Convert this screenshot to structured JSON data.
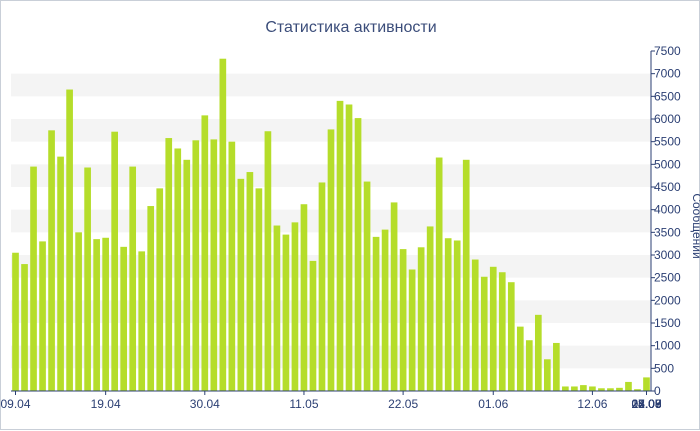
{
  "chart_data": {
    "type": "bar",
    "title": "Статистика активности",
    "xlabel": "",
    "ylabel": "Сообщений",
    "ylim": [
      0,
      7500
    ],
    "y_ticks": [
      0,
      500,
      1000,
      1500,
      2000,
      2500,
      3000,
      3500,
      4000,
      4500,
      5000,
      5500,
      6000,
      6500,
      7000,
      7500
    ],
    "y_axis_side": "right",
    "grid": "alternating horizontal bands",
    "legend": "none",
    "bar_color": "#b5dd2a",
    "band_color": "#f4f4f4",
    "x_tick_labels": [
      {
        "index": 0,
        "label": "09.04"
      },
      {
        "index": 10,
        "label": "19.04"
      },
      {
        "index": 21,
        "label": "30.04"
      },
      {
        "index": 32,
        "label": "11.05"
      },
      {
        "index": 43,
        "label": "22.05"
      },
      {
        "index": 53,
        "label": "01.06"
      },
      {
        "index": 64,
        "label": "12.06"
      },
      {
        "index": 75,
        "label": "23.06"
      },
      {
        "index": 86,
        "label": "04.07"
      },
      {
        "index": 96,
        "label": "14.07"
      },
      {
        "index": 107,
        "label": "25.07"
      },
      {
        "index": 118,
        "label": "05.08"
      },
      {
        "index": 126,
        "label": "13.08"
      },
      {
        "index": 136,
        "label": "22.08"
      },
      {
        "index": 147,
        "label": "17.09"
      },
      {
        "index": 158,
        "label": "22.09"
      }
    ],
    "values": [
      3050,
      2800,
      4950,
      3300,
      5750,
      5170,
      6650,
      3500,
      4930,
      3350,
      3380,
      5720,
      3180,
      4950,
      3080,
      4080,
      4470,
      5580,
      5350,
      5100,
      5530,
      6080,
      5550,
      7330,
      5500,
      4680,
      4830,
      4470,
      5730,
      3650,
      3450,
      3720,
      4120,
      2870,
      4600,
      5770,
      6400,
      6320,
      6020,
      4620,
      3400,
      3560,
      4160,
      3130,
      2680,
      3170,
      3630,
      5150,
      3370,
      3320,
      5100,
      2900,
      2520,
      2740,
      2620,
      2400,
      1420,
      1120,
      1680,
      700,
      1060,
      100,
      100,
      130,
      100,
      60,
      60,
      70,
      200,
      40,
      300
    ]
  }
}
